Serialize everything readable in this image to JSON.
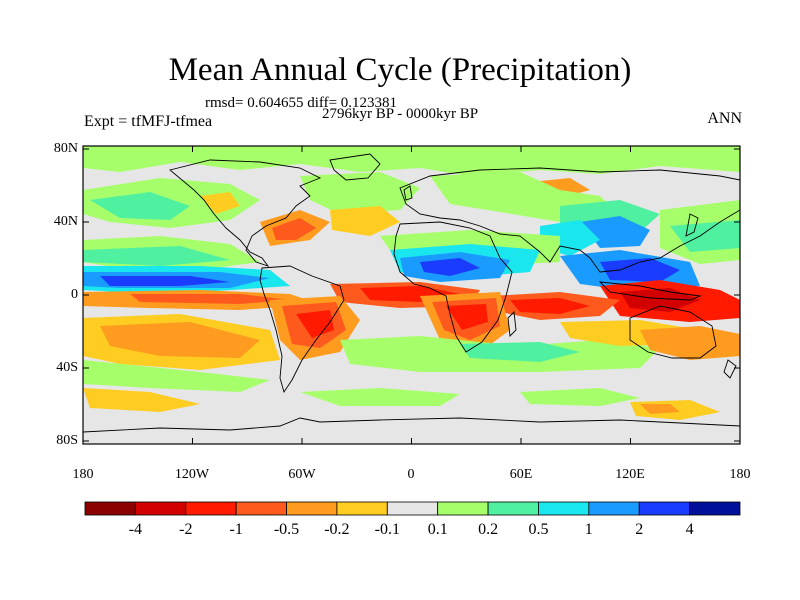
{
  "header": {
    "title": "Mean Annual Cycle (Precipitation)",
    "stats": "rmsd= 0.604655  diff= 0.123381",
    "period": "2796kyr BP - 0000kyr BP",
    "experiment": "Expt = tfMFJ-tfmea",
    "season": "ANN"
  },
  "axes": {
    "lat_labels": [
      "80N",
      "40N",
      "0",
      "40S",
      "80S"
    ],
    "lon_labels": [
      "180",
      "120W",
      "60W",
      "0",
      "60E",
      "120E",
      "180"
    ]
  },
  "colorbar": {
    "labels": [
      "-4",
      "-2",
      "-1",
      "-0.5",
      "-0.2",
      "-0.1",
      "0.1",
      "0.2",
      "0.5",
      "1",
      "2",
      "4"
    ],
    "colors": [
      "#8b0000",
      "#d20000",
      "#ff1a00",
      "#ff5a1e",
      "#ff9b1e",
      "#ffcc22",
      "#e6e6e6",
      "#a6ff6a",
      "#4ff0a0",
      "#1ae6ee",
      "#1a9bff",
      "#1a3cff",
      "#00109a"
    ]
  },
  "colors": {
    "land_outline": "#000000",
    "background": "#e6e6e6"
  }
}
